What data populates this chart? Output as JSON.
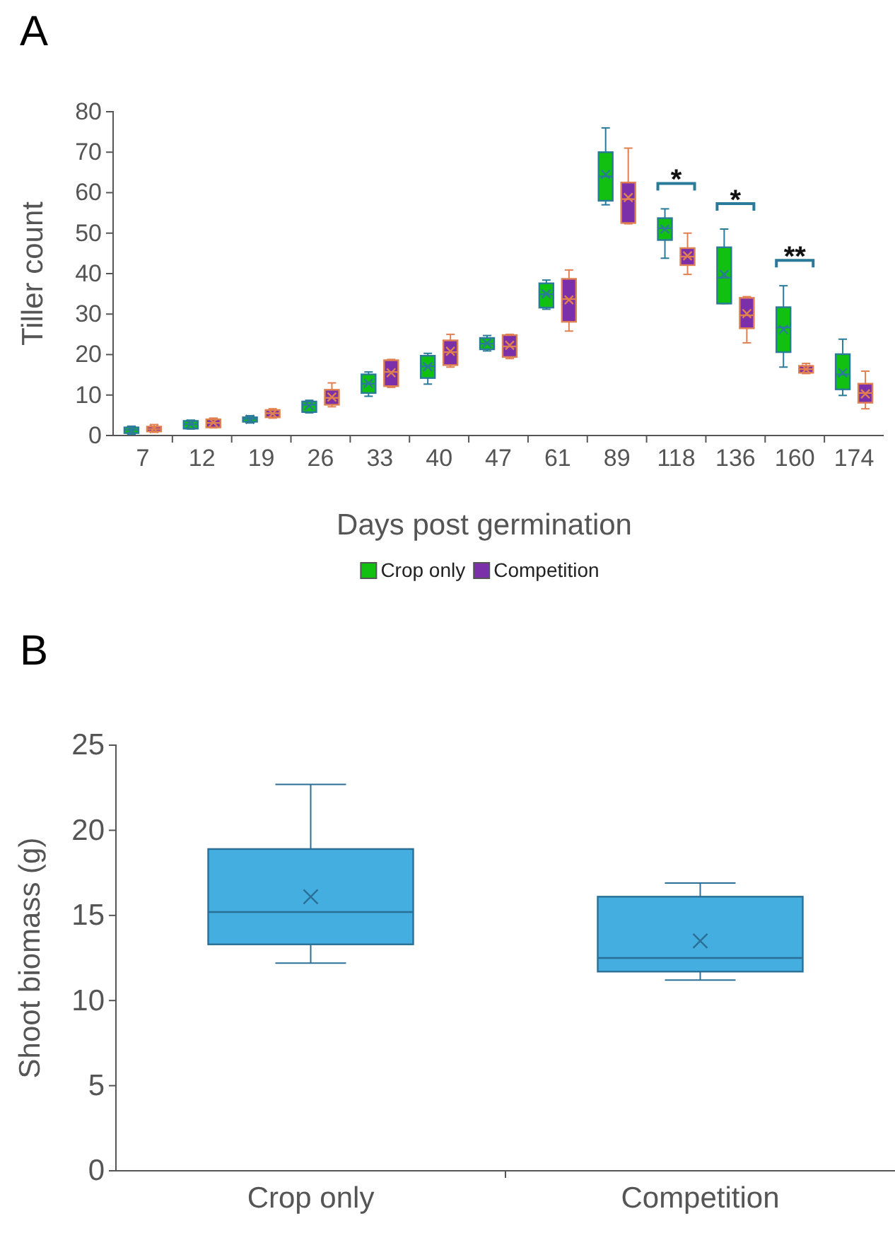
{
  "chart_data": [
    {
      "type": "box",
      "title": "A",
      "xlabel": "Days post germination",
      "ylabel": "Tiller count",
      "categories": [
        "7",
        "12",
        "19",
        "26",
        "33",
        "40",
        "47",
        "61",
        "89",
        "118",
        "136",
        "160",
        "174"
      ],
      "ylim": [
        0,
        80
      ],
      "yticks": [
        0,
        10,
        20,
        30,
        40,
        50,
        60,
        70,
        80
      ],
      "legend": "bottom",
      "series": [
        {
          "name": "Crop only",
          "color": "#11c011",
          "boxes": [
            {
              "low": 0.3,
              "q1": 0.6,
              "median": 1.4,
              "q3": 2.0,
              "high": 2.3,
              "mean": 1.3
            },
            {
              "low": 1.6,
              "q1": 1.7,
              "median": 2.8,
              "q3": 3.6,
              "high": 3.8,
              "mean": 2.8
            },
            {
              "low": 3.1,
              "q1": 3.4,
              "median": 4.1,
              "q3": 4.5,
              "high": 4.9,
              "mean": 4.0
            },
            {
              "low": 5.6,
              "q1": 5.8,
              "median": 7.6,
              "q3": 8.4,
              "high": 8.7,
              "mean": 7.4
            },
            {
              "low": 9.7,
              "q1": 10.5,
              "median": 12.8,
              "q3": 15.1,
              "high": 15.7,
              "mean": 12.9
            },
            {
              "low": 12.7,
              "q1": 14.2,
              "median": 17.1,
              "q3": 19.7,
              "high": 20.3,
              "mean": 17.0
            },
            {
              "low": 20.9,
              "q1": 21.3,
              "median": 22.7,
              "q3": 24.1,
              "high": 24.7,
              "mean": 22.8
            },
            {
              "low": 31.2,
              "q1": 31.6,
              "median": 34.9,
              "q3": 37.6,
              "high": 38.4,
              "mean": 35.0
            },
            {
              "low": 57,
              "q1": 58,
              "median": 64,
              "q3": 70,
              "high": 76,
              "mean": 64.5
            },
            {
              "low": 43.8,
              "q1": 48.3,
              "median": 51.2,
              "q3": 53.7,
              "high": 56,
              "mean": 51.0
            },
            {
              "low": 32.6,
              "q1": 32.6,
              "median": 39,
              "q3": 46.5,
              "high": 51,
              "mean": 39.8
            },
            {
              "low": 16.9,
              "q1": 20.6,
              "median": 26.7,
              "q3": 31.7,
              "high": 37,
              "mean": 26.2
            },
            {
              "low": 9.9,
              "q1": 11.4,
              "median": 15.1,
              "q3": 20.1,
              "high": 23.8,
              "mean": 15.5
            }
          ]
        },
        {
          "name": "Competition",
          "color": "#7b2fa8",
          "boxes": [
            {
              "low": 0.8,
              "q1": 1.0,
              "median": 1.6,
              "q3": 2.2,
              "high": 2.7,
              "mean": 1.7
            },
            {
              "low": 1.9,
              "q1": 2.0,
              "median": 3.1,
              "q3": 4.0,
              "high": 4.3,
              "mean": 3.2
            },
            {
              "low": 4.3,
              "q1": 4.5,
              "median": 5.5,
              "q3": 6.3,
              "high": 6.6,
              "mean": 5.4
            },
            {
              "low": 7.1,
              "q1": 7.6,
              "median": 9.3,
              "q3": 11.3,
              "high": 13,
              "mean": 9.5
            },
            {
              "low": 11.9,
              "q1": 12.2,
              "median": 15.7,
              "q3": 18.6,
              "high": 18.8,
              "mean": 15.5
            },
            {
              "low": 16.9,
              "q1": 17.4,
              "median": 20.6,
              "q3": 23.5,
              "high": 25,
              "mean": 20.8
            },
            {
              "low": 19,
              "q1": 19.4,
              "median": 22,
              "q3": 24.8,
              "high": 25,
              "mean": 22.3
            },
            {
              "low": 25.8,
              "q1": 28.1,
              "median": 33.7,
              "q3": 38.7,
              "high": 40.9,
              "mean": 33.5
            },
            {
              "low": 52.3,
              "q1": 52.5,
              "median": 58.4,
              "q3": 62.5,
              "high": 71,
              "mean": 58.8
            },
            {
              "low": 39.8,
              "q1": 42.1,
              "median": 44.2,
              "q3": 46.3,
              "high": 50,
              "mean": 44.4
            },
            {
              "low": 22.9,
              "q1": 26.5,
              "median": 29.7,
              "q3": 34,
              "high": 34.3,
              "mean": 30.1
            },
            {
              "low": 15.3,
              "q1": 15.5,
              "median": 16.4,
              "q3": 17.2,
              "high": 17.8,
              "mean": 16.4
            },
            {
              "low": 6.6,
              "q1": 8.1,
              "median": 10.5,
              "q3": 12.8,
              "high": 15.9,
              "mean": 10.3
            }
          ]
        }
      ],
      "annotations": [
        "*",
        "*",
        "**"
      ]
    },
    {
      "type": "box",
      "title": "B",
      "ylabel": "Shoot biomass (g)",
      "categories": [
        "Crop only",
        "Competition"
      ],
      "ylim": [
        0,
        25
      ],
      "yticks": [
        0,
        5,
        10,
        15,
        20,
        25
      ],
      "series": [
        {
          "color": "#45aee0",
          "boxes": [
            {
              "low": 12.2,
              "q1": 13.3,
              "median": 15.2,
              "q3": 18.9,
              "high": 22.7,
              "mean": 16.1
            },
            {
              "low": 11.2,
              "q1": 11.7,
              "median": 12.5,
              "q3": 16.1,
              "high": 16.9,
              "mean": 13.5
            }
          ]
        }
      ]
    }
  ]
}
